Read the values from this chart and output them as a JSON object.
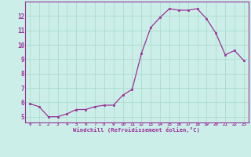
{
  "x": [
    0,
    1,
    2,
    3,
    4,
    5,
    6,
    7,
    8,
    9,
    10,
    11,
    12,
    13,
    14,
    15,
    16,
    17,
    18,
    19,
    20,
    21,
    22,
    23
  ],
  "y": [
    5.9,
    5.7,
    5.0,
    5.0,
    5.2,
    5.5,
    5.5,
    5.7,
    5.8,
    5.8,
    6.5,
    6.9,
    9.4,
    11.2,
    11.9,
    12.5,
    12.4,
    12.4,
    12.5,
    11.8,
    10.8,
    9.3,
    9.6,
    8.9
  ],
  "line_color": "#993399",
  "marker": "s",
  "marker_size": 1.8,
  "line_width": 0.9,
  "background_color": "#cceee8",
  "grid_color": "#aaddcc",
  "xlabel": "Windchill (Refroidissement éolien,°C)",
  "ylabel_ticks": [
    5,
    6,
    7,
    8,
    9,
    10,
    11,
    12
  ],
  "xlim": [
    -0.5,
    23.5
  ],
  "ylim": [
    4.6,
    13.0
  ],
  "xtick_labels": [
    "0",
    "1",
    "2",
    "3",
    "4",
    "5",
    "6",
    "7",
    "8",
    "9",
    "10",
    "11",
    "12",
    "13",
    "14",
    "15",
    "16",
    "17",
    "18",
    "19",
    "20",
    "21",
    "22",
    "23"
  ],
  "tick_color": "#993399",
  "label_color": "#993399",
  "spine_color": "#993399"
}
